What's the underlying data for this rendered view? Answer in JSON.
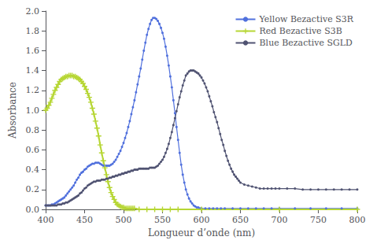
{
  "chart_data": {
    "type": "line",
    "xlabel": "Longueur d’onde (nm)",
    "ylabel": "Absorbance",
    "xlim": [
      400,
      800
    ],
    "ylim": [
      0,
      2.0
    ],
    "xticks": [
      400,
      450,
      500,
      550,
      600,
      650,
      700,
      750,
      800
    ],
    "yticks": [
      {
        "value": 0.0,
        "label": "0.0"
      },
      0.2,
      0.4,
      0.6,
      0.8,
      {
        "value": 1.0,
        "label": "1.0"
      },
      1.2,
      1.4,
      1.6,
      1.8,
      {
        "value": 2.0,
        "label": "2.0"
      }
    ],
    "grid": false,
    "legend": "upper right",
    "series": [
      {
        "name": "Yellow Bezactive S3R",
        "marker": "circle",
        "x": [
          400,
          402,
          404,
          406,
          408,
          410,
          412,
          414,
          416,
          418,
          420,
          422,
          424,
          426,
          428,
          430,
          432,
          434,
          436,
          438,
          440,
          442,
          444,
          446,
          448,
          450,
          452,
          454,
          456,
          458,
          460,
          462,
          464,
          466,
          468,
          470,
          472,
          474,
          476,
          478,
          480,
          482,
          484,
          486,
          488,
          490,
          492,
          494,
          496,
          498,
          500,
          502,
          504,
          506,
          508,
          510,
          512,
          514,
          516,
          518,
          520,
          522,
          524,
          526,
          528,
          530,
          532,
          534,
          536,
          538,
          540,
          542,
          544,
          546,
          548,
          550,
          552,
          554,
          556,
          558,
          560,
          562,
          564,
          566,
          568,
          570,
          572,
          574,
          576,
          578,
          580,
          582,
          584,
          586,
          588,
          590,
          592,
          594,
          596,
          598,
          600,
          605,
          610,
          615,
          620,
          625,
          630,
          640,
          650,
          660,
          670,
          680,
          690,
          700,
          720,
          740,
          760,
          780,
          800
        ],
        "values": [
          0.04,
          0.04,
          0.04,
          0.04,
          0.05,
          0.05,
          0.06,
          0.07,
          0.08,
          0.09,
          0.1,
          0.11,
          0.12,
          0.14,
          0.16,
          0.18,
          0.2,
          0.22,
          0.24,
          0.27,
          0.3,
          0.32,
          0.35,
          0.37,
          0.38,
          0.4,
          0.41,
          0.43,
          0.44,
          0.45,
          0.46,
          0.46,
          0.47,
          0.47,
          0.47,
          0.46,
          0.45,
          0.44,
          0.44,
          0.44,
          0.44,
          0.44,
          0.45,
          0.46,
          0.48,
          0.5,
          0.53,
          0.56,
          0.59,
          0.63,
          0.67,
          0.72,
          0.77,
          0.83,
          0.89,
          0.96,
          1.03,
          1.1,
          1.18,
          1.26,
          1.34,
          1.42,
          1.51,
          1.6,
          1.68,
          1.76,
          1.82,
          1.87,
          1.91,
          1.93,
          1.93,
          1.92,
          1.9,
          1.87,
          1.83,
          1.78,
          1.72,
          1.64,
          1.55,
          1.45,
          1.34,
          1.23,
          1.1,
          0.97,
          0.83,
          0.7,
          0.57,
          0.45,
          0.35,
          0.27,
          0.2,
          0.15,
          0.11,
          0.08,
          0.06,
          0.04,
          0.03,
          0.02,
          0.02,
          0.01,
          0.01,
          0.01,
          0.01,
          0.01,
          0.01,
          0.01,
          0.01,
          0.01,
          0.01,
          0.01,
          0.01,
          0.01,
          0.01,
          0.01,
          0.01,
          0.01,
          0.01,
          0.01,
          0.01
        ]
      },
      {
        "name": "Red Bezactive S3B",
        "marker": "plus",
        "x": [
          400,
          402,
          404,
          406,
          408,
          410,
          412,
          414,
          416,
          418,
          420,
          422,
          424,
          426,
          428,
          430,
          432,
          434,
          436,
          438,
          440,
          442,
          444,
          446,
          448,
          450,
          452,
          454,
          456,
          458,
          460,
          462,
          464,
          466,
          468,
          470,
          472,
          474,
          476,
          478,
          480,
          482,
          484,
          486,
          488,
          490,
          492,
          494,
          496,
          498,
          500,
          502,
          504,
          506,
          508,
          510,
          512,
          514,
          520,
          530,
          540,
          550,
          560,
          570,
          600,
          700,
          800
        ],
        "values": [
          1.0,
          1.02,
          1.05,
          1.08,
          1.12,
          1.16,
          1.2,
          1.23,
          1.26,
          1.29,
          1.31,
          1.32,
          1.33,
          1.34,
          1.34,
          1.35,
          1.35,
          1.35,
          1.34,
          1.34,
          1.33,
          1.32,
          1.31,
          1.29,
          1.27,
          1.24,
          1.21,
          1.17,
          1.13,
          1.08,
          1.02,
          0.96,
          0.89,
          0.82,
          0.74,
          0.65,
          0.57,
          0.49,
          0.42,
          0.35,
          0.28,
          0.22,
          0.17,
          0.13,
          0.1,
          0.07,
          0.05,
          0.04,
          0.03,
          0.02,
          0.02,
          0.01,
          0.01,
          0.01,
          0.01,
          0.01,
          0.01,
          0.01,
          0.0,
          0.0,
          0.0,
          0.0,
          0.0,
          0.0,
          0.0,
          0.0,
          0.0
        ]
      },
      {
        "name": "Blue Bezactive SGLD",
        "marker": "circle",
        "x": [
          400,
          402,
          404,
          406,
          408,
          410,
          412,
          414,
          416,
          418,
          420,
          422,
          424,
          426,
          428,
          430,
          432,
          434,
          436,
          438,
          440,
          442,
          444,
          446,
          448,
          450,
          452,
          454,
          456,
          458,
          460,
          462,
          464,
          466,
          468,
          470,
          472,
          474,
          476,
          478,
          480,
          482,
          484,
          486,
          488,
          490,
          492,
          494,
          496,
          498,
          500,
          502,
          504,
          506,
          508,
          510,
          512,
          514,
          516,
          518,
          520,
          522,
          524,
          526,
          528,
          530,
          532,
          534,
          536,
          538,
          540,
          542,
          544,
          546,
          548,
          550,
          552,
          554,
          556,
          558,
          560,
          562,
          564,
          566,
          568,
          570,
          572,
          574,
          576,
          578,
          580,
          582,
          584,
          586,
          588,
          590,
          592,
          594,
          596,
          598,
          600,
          602,
          604,
          606,
          608,
          610,
          612,
          614,
          616,
          618,
          620,
          622,
          624,
          626,
          628,
          630,
          632,
          634,
          636,
          638,
          640,
          642,
          644,
          646,
          648,
          650,
          655,
          660,
          665,
          670,
          675,
          680,
          685,
          690,
          695,
          700,
          710,
          720,
          730,
          740,
          750,
          760,
          770,
          780,
          790,
          800
        ],
        "values": [
          0.04,
          0.04,
          0.04,
          0.04,
          0.04,
          0.04,
          0.04,
          0.04,
          0.05,
          0.05,
          0.05,
          0.06,
          0.06,
          0.07,
          0.07,
          0.08,
          0.09,
          0.1,
          0.11,
          0.12,
          0.13,
          0.14,
          0.16,
          0.17,
          0.19,
          0.21,
          0.22,
          0.24,
          0.25,
          0.26,
          0.27,
          0.28,
          0.28,
          0.29,
          0.29,
          0.29,
          0.3,
          0.3,
          0.3,
          0.31,
          0.31,
          0.32,
          0.32,
          0.33,
          0.33,
          0.34,
          0.34,
          0.35,
          0.35,
          0.36,
          0.36,
          0.37,
          0.37,
          0.38,
          0.38,
          0.39,
          0.39,
          0.4,
          0.4,
          0.4,
          0.41,
          0.41,
          0.41,
          0.41,
          0.41,
          0.41,
          0.41,
          0.42,
          0.42,
          0.42,
          0.42,
          0.43,
          0.44,
          0.46,
          0.48,
          0.5,
          0.53,
          0.57,
          0.61,
          0.66,
          0.72,
          0.78,
          0.85,
          0.92,
          0.99,
          1.06,
          1.13,
          1.19,
          1.25,
          1.3,
          1.35,
          1.37,
          1.39,
          1.4,
          1.4,
          1.4,
          1.39,
          1.38,
          1.37,
          1.35,
          1.33,
          1.3,
          1.27,
          1.23,
          1.19,
          1.14,
          1.09,
          1.04,
          0.98,
          0.93,
          0.88,
          0.82,
          0.76,
          0.7,
          0.65,
          0.59,
          0.54,
          0.49,
          0.45,
          0.41,
          0.38,
          0.35,
          0.33,
          0.31,
          0.29,
          0.27,
          0.25,
          0.24,
          0.23,
          0.22,
          0.21,
          0.21,
          0.21,
          0.21,
          0.21,
          0.21,
          0.21,
          0.21,
          0.2,
          0.2,
          0.2,
          0.2,
          0.2,
          0.2,
          0.2,
          0.2
        ]
      }
    ]
  }
}
